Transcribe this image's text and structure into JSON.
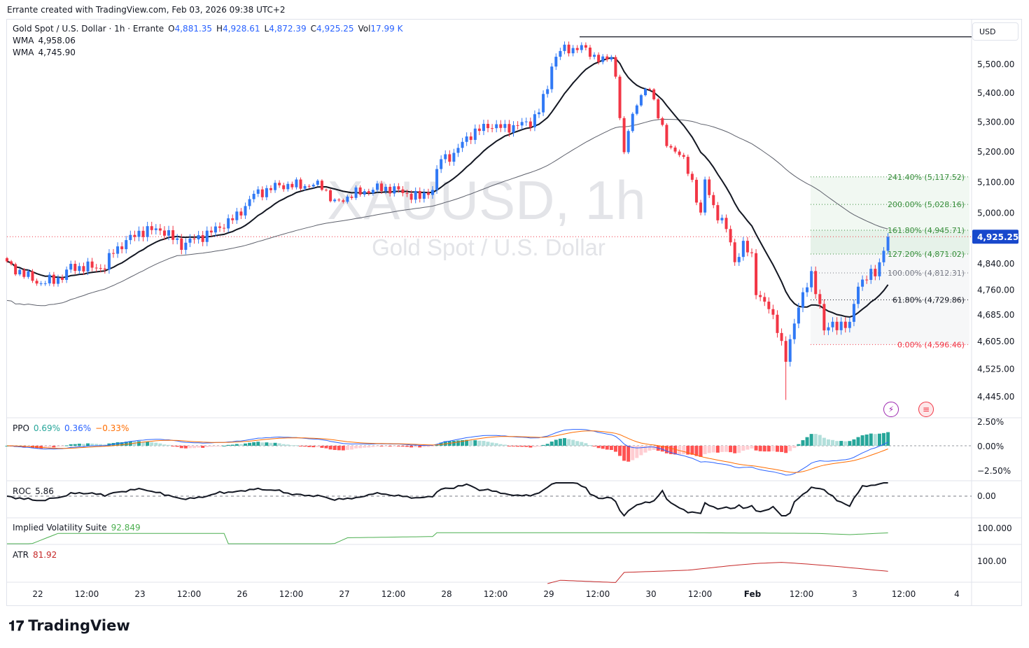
{
  "credit": "Errante created with TradingView.com, Feb 03, 2026 09:38 UTC+2",
  "legend": {
    "symbol": "Gold Spot / U.S. Dollar · 1h · Errante",
    "o_label": "O",
    "o": "4,881.35",
    "h_label": "H",
    "h": "4,928.61",
    "l_label": "L",
    "l": "4,872.39",
    "c_label": "C",
    "c": "4,925.25",
    "vol_label": "Vol",
    "vol": "17.99 K",
    "wma1_label": "WMA",
    "wma1": "4,958.06",
    "wma2_label": "WMA",
    "wma2": "4,745.90"
  },
  "currency": "USD",
  "watermark": {
    "ticker": "XAUUSD, 1h",
    "name": "Gold Spot / U.S. Dollar"
  },
  "indicators": {
    "ppo": {
      "label": "PPO",
      "v1": "0.69%",
      "v2": "0.36%",
      "v3": "−0.33%",
      "axis": [
        "2.50%",
        "0.00%",
        "−2.50%"
      ]
    },
    "roc": {
      "label": "ROC",
      "value": "5.86",
      "axis": [
        "0.00"
      ]
    },
    "iv": {
      "label": "Implied Volatility Suite",
      "value": "92.849",
      "axis": [
        "100.000"
      ]
    },
    "atr": {
      "label": "ATR",
      "value": "81.92",
      "axis": [
        "100.00"
      ]
    }
  },
  "logo": "TradingView",
  "colors": {
    "up": "#3179f5",
    "down": "#f23645",
    "wma_fast": "#131722",
    "wma_slow": "#5d606b",
    "price_tag": "#1848cc",
    "fib_green": "#388e3c",
    "fib_grey": "#787b86",
    "fib_red": "#f23645"
  },
  "chart_data": {
    "type": "candlestick",
    "title": "Gold Spot / U.S. Dollar · 1h",
    "y_ticks": [
      5500,
      5400,
      5300,
      5200,
      5100,
      5000,
      4840,
      4760,
      4685,
      4605,
      4525,
      4445
    ],
    "y_tick_labels": [
      "5,500.00",
      "5,400.00",
      "5,300.00",
      "5,200.00",
      "5,100.00",
      "5,000.00",
      "4,840.00",
      "4,760.00",
      "4,685.00",
      "4,605.00",
      "4,525.00",
      "4,445.00"
    ],
    "x_tick_labels": [
      "22",
      "12:00",
      "23",
      "12:00",
      "26",
      "12:00",
      "27",
      "12:00",
      "28",
      "12:00",
      "29",
      "12:00",
      "30",
      "12:00",
      "Feb",
      "12:00",
      "3",
      "12:00",
      "4"
    ],
    "last_price": "4,925.25",
    "last_price_value": 4925.25,
    "high_line": 5598,
    "close_anchors": [
      [
        0,
        4840
      ],
      [
        5,
        4800
      ],
      [
        8,
        4780
      ],
      [
        13,
        4800
      ],
      [
        15,
        4830
      ],
      [
        23,
        4830
      ],
      [
        25,
        4880
      ],
      [
        31,
        4940
      ],
      [
        36,
        4950
      ],
      [
        41,
        4900
      ],
      [
        48,
        4940
      ],
      [
        54,
        4990
      ],
      [
        58,
        5060
      ],
      [
        64,
        5090
      ],
      [
        74,
        5090
      ],
      [
        77,
        5030
      ],
      [
        81,
        5060
      ],
      [
        87,
        5080
      ],
      [
        90,
        5080
      ],
      [
        97,
        5050
      ],
      [
        100,
        5080
      ],
      [
        102,
        5180
      ],
      [
        105,
        5190
      ],
      [
        108,
        5250
      ],
      [
        113,
        5290
      ],
      [
        117,
        5280
      ],
      [
        123,
        5300
      ],
      [
        125,
        5340
      ],
      [
        127,
        5420
      ],
      [
        128,
        5500
      ],
      [
        130,
        5550
      ],
      [
        135,
        5560
      ],
      [
        140,
        5510
      ],
      [
        142,
        5530
      ],
      [
        143,
        5460
      ],
      [
        145,
        5180
      ],
      [
        146,
        5280
      ],
      [
        148,
        5370
      ],
      [
        151,
        5420
      ],
      [
        153,
        5330
      ],
      [
        155,
        5220
      ],
      [
        158,
        5200
      ],
      [
        161,
        5100
      ],
      [
        163,
        5000
      ],
      [
        164,
        5100
      ],
      [
        166,
        5020
      ],
      [
        169,
        4950
      ],
      [
        171,
        4850
      ],
      [
        173,
        4900
      ],
      [
        175,
        4860
      ],
      [
        176,
        4760
      ],
      [
        179,
        4700
      ],
      [
        181,
        4650
      ],
      [
        183,
        4550
      ],
      [
        184,
        4600
      ],
      [
        186,
        4720
      ],
      [
        189,
        4800
      ],
      [
        191,
        4720
      ],
      [
        192,
        4640
      ],
      [
        196,
        4660
      ],
      [
        198,
        4650
      ],
      [
        200,
        4780
      ],
      [
        202,
        4800
      ],
      [
        204,
        4810
      ],
      [
        206,
        4881
      ],
      [
        207,
        4925
      ]
    ],
    "fib_levels": [
      {
        "ratio": "241.40%",
        "price": 5117.52,
        "label": "241.40% (5,117.52)"
      },
      {
        "ratio": "200.00%",
        "price": 5028.16,
        "label": "200.00% (5,028.16)"
      },
      {
        "ratio": "161.80%",
        "price": 4945.71,
        "label": "161.80% (4,945.71)"
      },
      {
        "ratio": "127.20%",
        "price": 4871.02,
        "label": "127.20% (4,871.02)"
      },
      {
        "ratio": "100.00%",
        "price": 4812.31,
        "label": "100.00% (4,812.31)"
      },
      {
        "ratio": "61.80%",
        "price": 4729.86,
        "label": "61.80% (4,729.86)"
      },
      {
        "ratio": "0.00%",
        "price": 4596.46,
        "label": "0.00% (4,596.46)"
      }
    ],
    "iv_anchors": [
      [
        0,
        60
      ],
      [
        12,
        92
      ],
      [
        31,
        92
      ],
      [
        51,
        92
      ],
      [
        52,
        70
      ],
      [
        75,
        70
      ],
      [
        80,
        85
      ],
      [
        100,
        87
      ],
      [
        101,
        93
      ],
      [
        160,
        93
      ],
      [
        190,
        92
      ],
      [
        198,
        90
      ],
      [
        207,
        92.8
      ]
    ],
    "atr_anchors": [
      [
        127,
        60
      ],
      [
        130,
        66
      ],
      [
        143,
        62
      ],
      [
        145,
        80
      ],
      [
        160,
        84
      ],
      [
        170,
        92
      ],
      [
        176,
        96
      ],
      [
        182,
        98
      ],
      [
        188,
        95
      ],
      [
        196,
        90
      ],
      [
        207,
        82
      ]
    ]
  }
}
